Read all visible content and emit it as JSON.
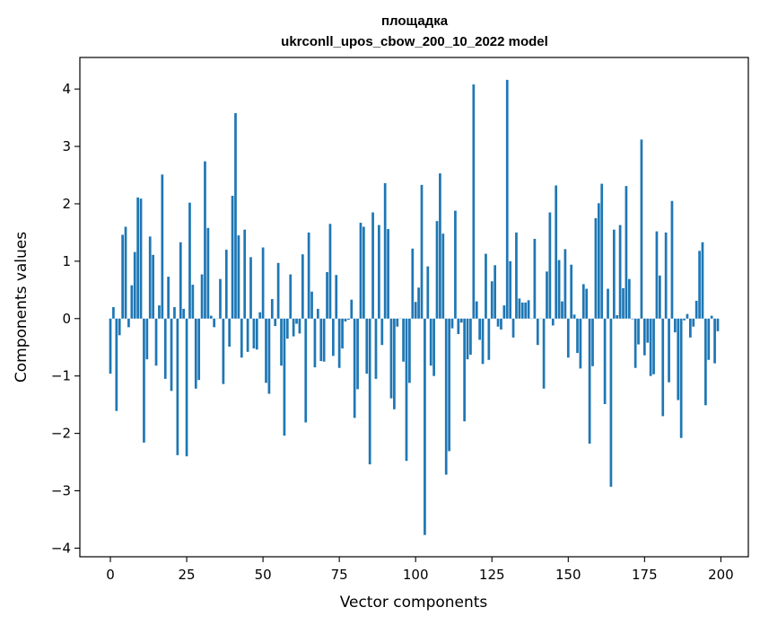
{
  "chart_data": {
    "type": "bar",
    "title_line1": "площадка",
    "title_line2": "ukrconll_upos_cbow_200_10_2022 model",
    "xlabel": "Vector components",
    "ylabel": "Components values",
    "xlim": [
      -10,
      209
    ],
    "ylim": [
      -4.15,
      4.55
    ],
    "x_ticks": [
      0,
      25,
      50,
      75,
      100,
      125,
      150,
      175,
      200
    ],
    "x_tick_labels": [
      "0",
      "25",
      "50",
      "75",
      "100",
      "125",
      "150",
      "175",
      "200"
    ],
    "y_ticks": [
      -4,
      -3,
      -2,
      -1,
      0,
      1,
      2,
      3,
      4
    ],
    "y_tick_labels": [
      "−4",
      "−3",
      "−2",
      "−1",
      "0",
      "1",
      "2",
      "3",
      "4"
    ],
    "grid": false,
    "bar_color": "#1f77b4",
    "values": [
      -0.96,
      0.2,
      -1.61,
      -0.29,
      1.46,
      1.6,
      -0.15,
      0.58,
      1.16,
      2.11,
      2.09,
      -2.16,
      -0.71,
      1.43,
      1.11,
      -0.82,
      0.23,
      2.51,
      -1.05,
      0.73,
      -1.26,
      0.2,
      -2.38,
      1.33,
      0.17,
      -2.4,
      2.02,
      0.59,
      -1.22,
      -1.07,
      0.77,
      2.74,
      1.58,
      0.05,
      -0.15,
      0.0,
      0.69,
      -1.14,
      1.2,
      -0.49,
      2.14,
      3.58,
      1.45,
      -0.68,
      1.55,
      -0.58,
      1.07,
      -0.52,
      -0.54,
      0.11,
      1.24,
      -1.12,
      -1.31,
      0.34,
      -0.13,
      0.97,
      -0.82,
      -2.04,
      -0.35,
      0.77,
      -0.31,
      -0.09,
      -0.26,
      1.12,
      -1.81,
      1.5,
      0.47,
      -0.85,
      0.17,
      -0.74,
      -0.75,
      0.81,
      1.65,
      -0.65,
      0.76,
      -0.86,
      -0.52,
      -0.05,
      -0.02,
      0.33,
      -1.73,
      -1.23,
      1.67,
      1.6,
      -0.96,
      -2.54,
      1.85,
      -1.05,
      1.63,
      -0.46,
      2.36,
      1.56,
      -1.39,
      -1.58,
      -0.14,
      0.0,
      -0.75,
      -2.48,
      -1.12,
      1.22,
      0.29,
      0.54,
      2.33,
      -3.77,
      0.91,
      -0.82,
      -1.0,
      1.7,
      2.53,
      1.48,
      -2.72,
      -2.31,
      -0.17,
      1.88,
      -0.27,
      -0.07,
      -1.79,
      -0.71,
      -0.63,
      4.08,
      0.3,
      -0.37,
      -0.79,
      1.13,
      -0.72,
      0.65,
      0.93,
      -0.14,
      -0.19,
      0.23,
      4.16,
      1.0,
      -0.33,
      1.5,
      0.35,
      0.28,
      0.28,
      0.32,
      0.0,
      1.39,
      -0.46,
      0.0,
      -1.22,
      0.82,
      1.85,
      -0.12,
      2.32,
      1.02,
      0.3,
      1.21,
      -0.68,
      0.94,
      0.07,
      -0.6,
      -0.87,
      0.6,
      0.52,
      -2.18,
      -0.83,
      1.75,
      2.01,
      2.35,
      -1.49,
      0.52,
      -2.93,
      1.55,
      0.06,
      1.63,
      0.53,
      2.31,
      0.69,
      -0.01,
      -0.86,
      -0.45,
      3.12,
      -0.64,
      -0.42,
      -1.0,
      -0.97,
      1.52,
      0.75,
      -1.7,
      1.5,
      -1.11,
      2.05,
      -0.24,
      -1.42,
      -2.08,
      -0.03,
      0.08,
      -0.33,
      -0.14,
      0.31,
      1.18,
      1.33,
      -1.51,
      -0.72,
      0.05,
      -0.78,
      -0.22
    ]
  }
}
